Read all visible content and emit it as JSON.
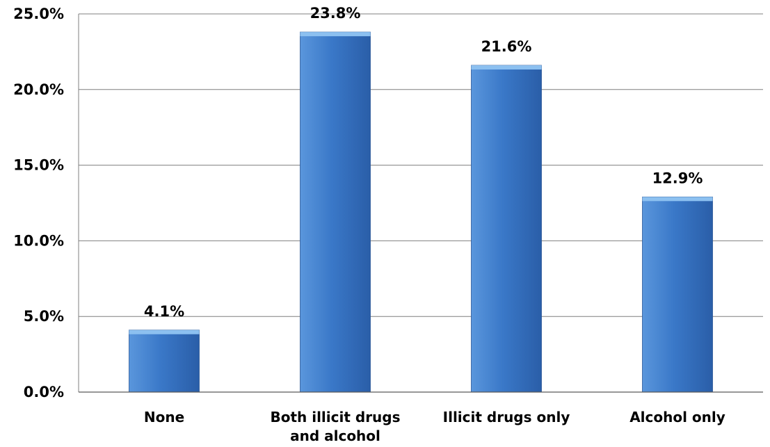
{
  "chart_data": {
    "type": "bar",
    "categories": [
      [
        "None"
      ],
      [
        "Both illicit drugs",
        "and alcohol"
      ],
      [
        "Illicit drugs only"
      ],
      [
        "Alcohol only"
      ]
    ],
    "values": [
      4.1,
      23.8,
      21.6,
      12.9
    ],
    "data_labels": [
      "4.1%",
      "23.8%",
      "21.6%",
      "12.9%"
    ],
    "y_ticks": [
      0,
      5,
      10,
      15,
      20,
      25
    ],
    "y_tick_labels": [
      "0.0%",
      "5.0%",
      "10.0%",
      "15.0%",
      "20.0%",
      "25.0%"
    ],
    "ylim": [
      0,
      25
    ],
    "grid": true,
    "legend": "none",
    "title": "",
    "xlabel": "",
    "ylabel": "",
    "colors": {
      "bar": "#3a78c8",
      "bar_light": "#5a96dc",
      "bar_dark": "#2a5ea8",
      "bar_top": "#8cc0f0",
      "grid": "#7f7f7f"
    }
  }
}
